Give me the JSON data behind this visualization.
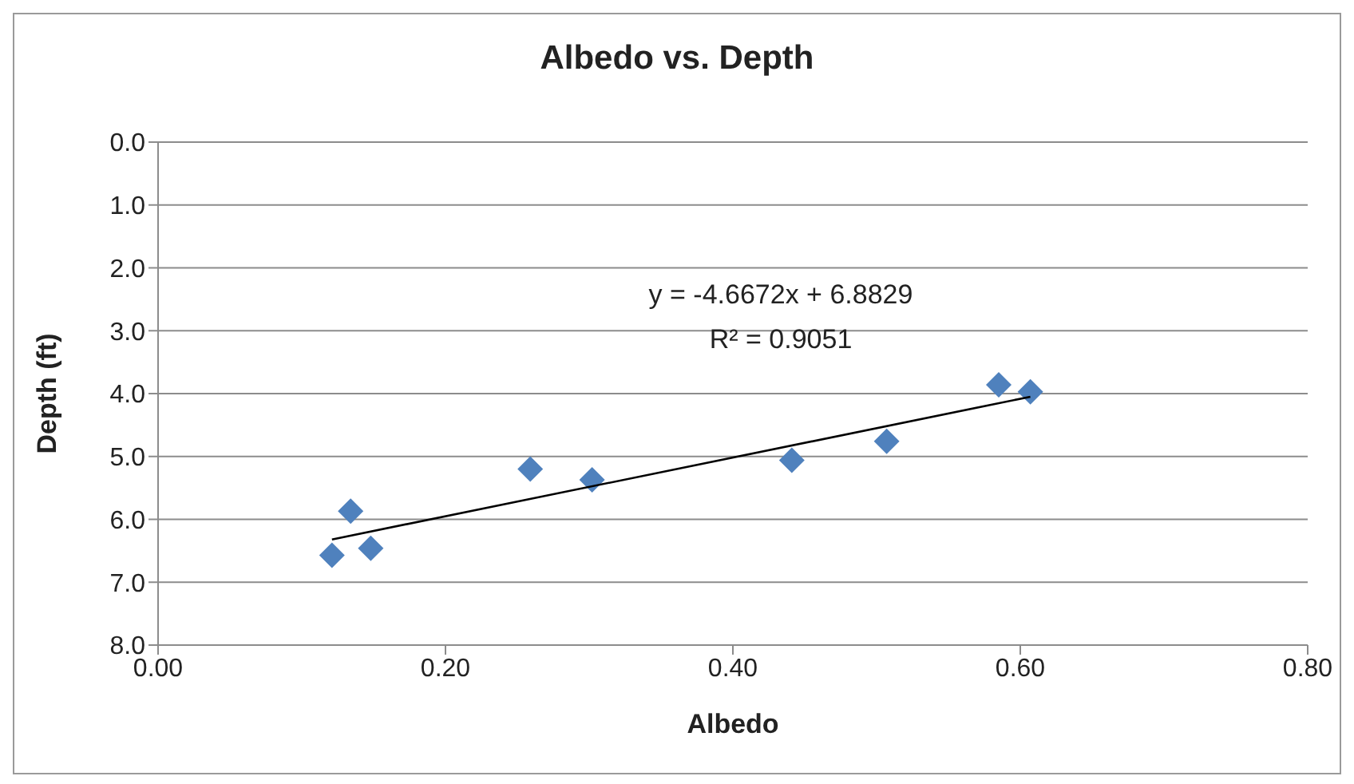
{
  "chart_data": {
    "type": "scatter",
    "title": "Albedo vs. Depth",
    "xlabel": "Albedo",
    "ylabel": "Depth (ft)",
    "series": [
      {
        "color": "#4f81bd",
        "marker": "diamond",
        "x": [
          0.121,
          0.134,
          0.148,
          0.259,
          0.302,
          0.441,
          0.507,
          0.585,
          0.607
        ],
        "values": [
          6.57,
          5.87,
          6.46,
          5.2,
          5.37,
          5.06,
          4.76,
          3.86,
          3.97
        ]
      },
      {
        "type": "line",
        "color": "#000000",
        "marker": "none",
        "x": [
          0.121,
          0.607
        ],
        "values": [
          6.32,
          4.05
        ]
      }
    ],
    "xlim": [
      0,
      0.8
    ],
    "xticks": [
      {
        "value": 0,
        "label": "0.00"
      },
      {
        "value": 0.2,
        "label": "0.20"
      },
      {
        "value": 0.4,
        "label": "0.40"
      },
      {
        "value": 0.6,
        "label": "0.60"
      },
      {
        "value": 0.8,
        "label": "0.80"
      }
    ],
    "ylim": [
      8,
      0
    ],
    "yticks": [
      {
        "value": 0,
        "label": "0.0"
      },
      {
        "value": 1,
        "label": "1.0"
      },
      {
        "value": 2,
        "label": "2.0"
      },
      {
        "value": 3,
        "label": "3.0"
      },
      {
        "value": 4,
        "label": "4.0"
      },
      {
        "value": 5,
        "label": "5.0"
      },
      {
        "value": 6,
        "label": "6.0"
      },
      {
        "value": 7,
        "label": "7.0"
      },
      {
        "value": 8,
        "label": "8.0"
      }
    ],
    "grid": "y",
    "annotations": [
      "y = -4.6672x + 6.8829",
      "R² = 0.9051"
    ]
  }
}
